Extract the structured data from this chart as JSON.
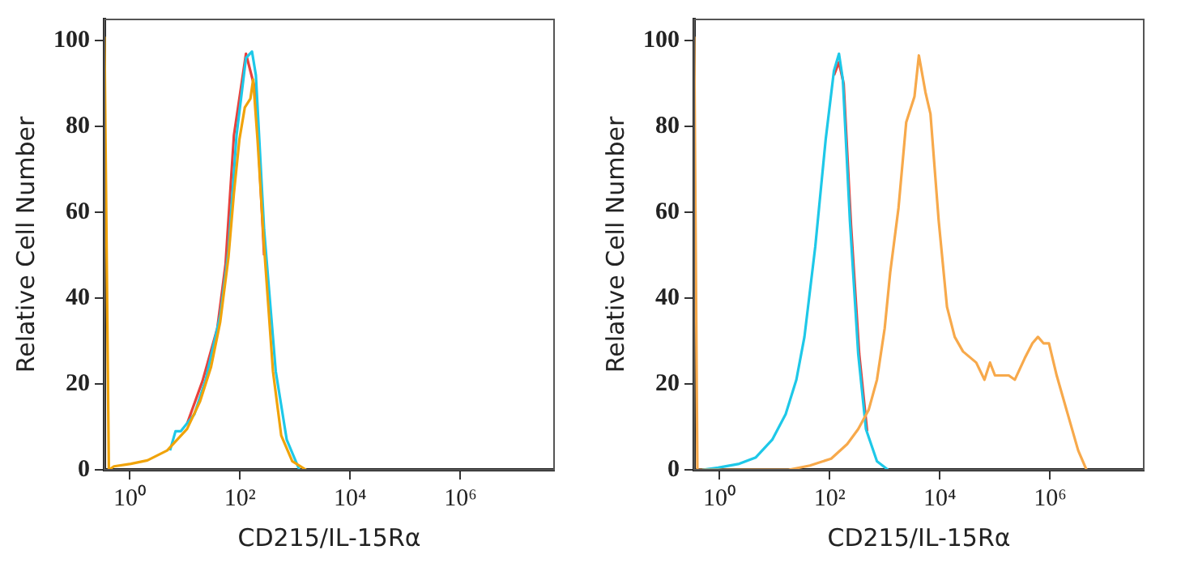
{
  "chart_data": [
    {
      "type": "line",
      "xlabel": "CD215/IL-15Rα",
      "ylabel": "Relative Cell Number",
      "log": "x",
      "grid": false,
      "legend": false,
      "marker": "none",
      "xlim": [
        0.35,
        50000000
      ],
      "ylim": [
        0,
        105
      ],
      "xticks": [
        {
          "value": 1,
          "label": "10⁰"
        },
        {
          "value": 100,
          "label": "10²"
        },
        {
          "value": 10000,
          "label": "10⁴"
        },
        {
          "value": 1000000,
          "label": "10⁶"
        }
      ],
      "yticks": [
        0,
        20,
        40,
        60,
        80,
        100
      ],
      "series": [
        {
          "color": "#e8413c",
          "x": [
            11,
            21,
            39,
            55,
            78,
            129,
            195,
            275
          ],
          "values": [
            10.7,
            20.7,
            33,
            48,
            78,
            97,
            88,
            50
          ]
        },
        {
          "color": "#1ec8e8",
          "x": [
            5.4,
            6.8,
            8.5,
            15,
            24,
            44,
            62,
            87,
            129,
            166,
            195,
            275,
            447,
            708,
            1200
          ],
          "values": [
            4.5,
            9,
            9,
            13,
            21,
            36,
            51,
            78,
            96,
            97.5,
            92,
            56,
            23,
            7,
            0
          ]
        },
        {
          "color": "#f0a30a",
          "x": [
            0.35,
            0.42,
            0.52,
            1.05,
            2.1,
            4.8,
            11,
            19,
            30,
            44,
            62,
            78,
            98,
            123,
            155,
            174,
            209,
            275,
            398,
            562,
            891,
            1585
          ],
          "values": [
            101,
            0,
            0.8,
            1.4,
            2.2,
            4.5,
            9.5,
            16,
            24,
            34.5,
            49.5,
            64.5,
            77,
            84.5,
            86.5,
            91,
            77,
            52,
            23,
            8,
            2,
            0
          ]
        }
      ]
    },
    {
      "type": "line",
      "xlabel": "CD215/IL-15Rα",
      "ylabel": "Relative Cell Number",
      "log": "x",
      "grid": false,
      "legend": false,
      "marker": "none",
      "xlim": [
        0.35,
        50000000
      ],
      "ylim": [
        0,
        105
      ],
      "xticks": [
        {
          "value": 1,
          "label": "10⁰"
        },
        {
          "value": 100,
          "label": "10²"
        },
        {
          "value": 10000,
          "label": "10⁴"
        },
        {
          "value": 1000000,
          "label": "10⁶"
        }
      ],
      "yticks": [
        0,
        20,
        40,
        60,
        80,
        100
      ],
      "series": [
        {
          "color": "#e8413c",
          "x": [
            120,
            148,
            180,
            245,
            345,
            480
          ],
          "values": [
            92,
            95,
            90,
            57,
            27,
            9
          ]
        },
        {
          "color": "#1ec8e8",
          "x": [
            0.49,
            0.95,
            2.3,
            4.6,
            9.1,
            16,
            25,
            35,
            55,
            85,
            120,
            148,
            174,
            234,
            331,
            457,
            724,
            1148
          ],
          "values": [
            0,
            0.5,
            1.4,
            2.9,
            7,
            13,
            21,
            31,
            52,
            77,
            93,
            97,
            91,
            58,
            27,
            9.5,
            2,
            0
          ]
        },
        {
          "color": "#f7a94b",
          "x": [
            0.35,
            0.4,
            18,
            44,
            107,
            209,
            331,
            513,
            724,
            1000,
            1259,
            1778,
            2455,
            3467,
            4169,
            5495,
            6761,
            9550,
            13490,
            18620,
            26300,
            45710,
            64570,
            81280,
            100000,
            177800,
            229100,
            346700,
            478600,
            602600,
            758600,
            955000,
            1318000,
            2089000,
            3236000,
            4571000
          ],
          "values": [
            101,
            0,
            0,
            1,
            2.6,
            6,
            9.5,
            14,
            21,
            33,
            46,
            61,
            81,
            87,
            96.6,
            88,
            83,
            58,
            38,
            31,
            27.6,
            25,
            21,
            25,
            22,
            22,
            21,
            26,
            29.5,
            31,
            29.5,
            29.5,
            22,
            13,
            4.5,
            0
          ]
        }
      ]
    }
  ]
}
